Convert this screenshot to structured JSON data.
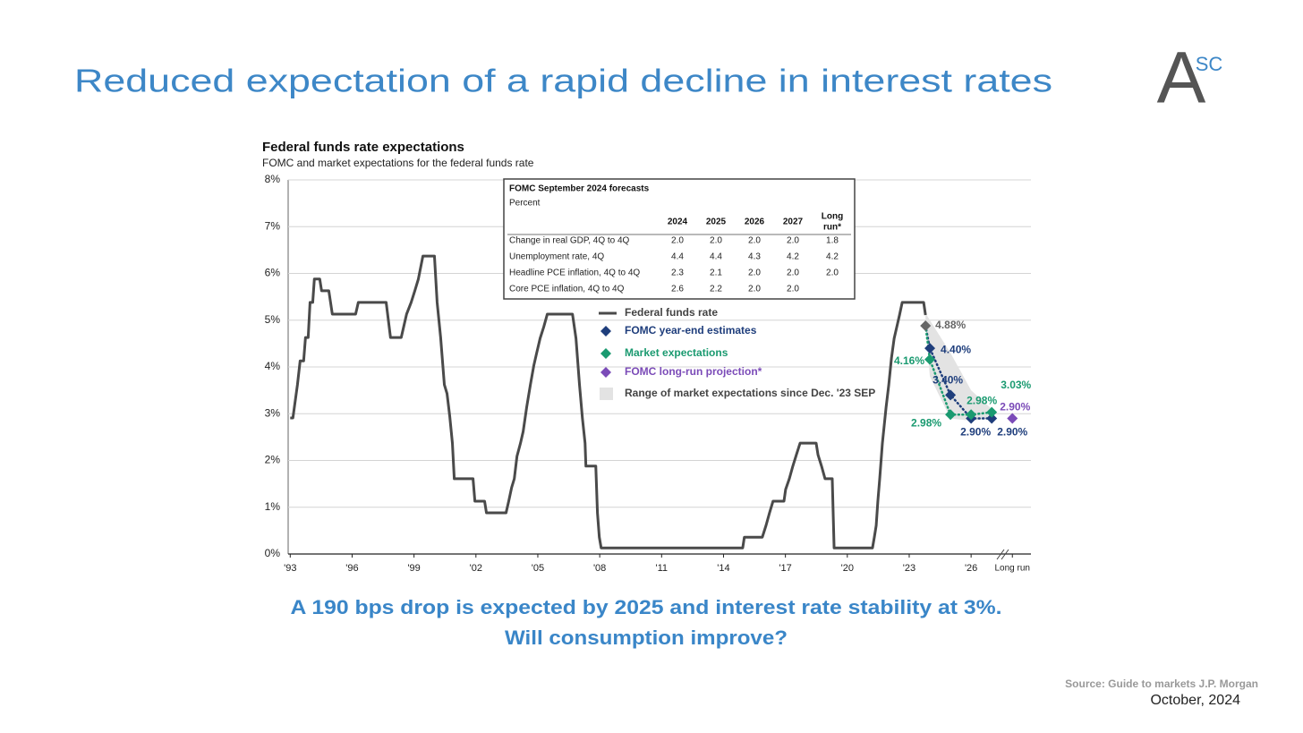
{
  "header": {
    "title": "Reduced expectation of a rapid decline in interest rates",
    "logo": "A",
    "logo_sup": "SC"
  },
  "chart_data": {
    "type": "line",
    "title": "Federal funds rate expectations",
    "subtitle": "FOMC and market expectations for the federal funds rate",
    "xlim": [
      1992.9,
      2028.9
    ],
    "ylim": [
      0,
      8
    ],
    "yticks": [
      {
        "value": 0,
        "label": "0%"
      },
      {
        "value": 1,
        "label": "1%"
      },
      {
        "value": 2,
        "label": "2%"
      },
      {
        "value": 3,
        "label": "3%"
      },
      {
        "value": 4,
        "label": "4%"
      },
      {
        "value": 5,
        "label": "5%"
      },
      {
        "value": 6,
        "label": "6%"
      },
      {
        "value": 7,
        "label": "7%"
      },
      {
        "value": 8,
        "label": "8%"
      }
    ],
    "xticks": [
      {
        "value": 1993,
        "label": "'93"
      },
      {
        "value": 1996,
        "label": "'96"
      },
      {
        "value": 1999,
        "label": "'99"
      },
      {
        "value": 2002,
        "label": "'02"
      },
      {
        "value": 2005,
        "label": "'05"
      },
      {
        "value": 2008,
        "label": "'08"
      },
      {
        "value": 2011,
        "label": "'11"
      },
      {
        "value": 2014,
        "label": "'14"
      },
      {
        "value": 2017,
        "label": "'17"
      },
      {
        "value": 2020,
        "label": "'20"
      },
      {
        "value": 2023,
        "label": "'23"
      },
      {
        "value": 2026,
        "label": "'26"
      },
      {
        "value": 2028,
        "label": "Long run"
      }
    ],
    "grid": true,
    "series": [
      {
        "name": "Federal funds rate",
        "color": "#4a4a4a",
        "style": "line",
        "x": [
          1993.0,
          1993.13,
          1993.35,
          1993.48,
          1993.65,
          1993.74,
          1993.87,
          1993.96,
          1994.09,
          1994.17,
          1994.43,
          1994.52,
          1994.87,
          1995.04,
          1996.17,
          1996.3,
          1997.65,
          1997.86,
          1998.38,
          1998.51,
          1998.64,
          1998.86,
          1999.04,
          1999.21,
          1999.43,
          1999.99,
          2000.12,
          2000.29,
          2000.47,
          2000.6,
          2000.73,
          2000.86,
          2000.95,
          2001.12,
          2001.86,
          2001.95,
          2002.42,
          2002.51,
          2003.46,
          2003.59,
          2003.73,
          2003.86,
          2003.99,
          2004.16,
          2004.29,
          2004.46,
          2004.64,
          2004.81,
          2004.94,
          2005.11,
          2005.29,
          2005.46,
          2006.68,
          2006.85,
          2007.02,
          2007.16,
          2007.29,
          2007.33,
          2007.81,
          2007.89,
          2007.98,
          2008.07,
          2014.93,
          2015.01,
          2015.88,
          2016.06,
          2016.23,
          2016.4,
          2016.93,
          2017.01,
          2017.19,
          2017.36,
          2017.53,
          2017.71,
          2018.49,
          2018.58,
          2018.75,
          2018.92,
          2019.27,
          2019.36,
          2021.22,
          2021.31,
          2021.4,
          2021.48,
          2021.57,
          2021.7,
          2021.88,
          2022.01,
          2022.14,
          2022.27,
          2022.4,
          2022.53,
          2022.66,
          2023.7,
          2023.79
        ],
        "values": [
          2.91,
          2.91,
          3.62,
          4.13,
          4.13,
          4.63,
          4.63,
          5.38,
          5.38,
          5.88,
          5.88,
          5.63,
          5.63,
          5.13,
          5.13,
          5.38,
          5.38,
          4.63,
          4.63,
          4.88,
          5.13,
          5.38,
          5.63,
          5.88,
          6.37,
          6.37,
          5.38,
          4.63,
          3.62,
          3.43,
          2.95,
          2.37,
          1.61,
          1.61,
          1.61,
          1.13,
          1.13,
          0.88,
          0.88,
          1.13,
          1.42,
          1.61,
          2.09,
          2.37,
          2.62,
          3.14,
          3.62,
          4.04,
          4.29,
          4.61,
          4.86,
          5.13,
          5.13,
          4.61,
          3.62,
          2.91,
          2.37,
          1.88,
          1.88,
          0.88,
          0.36,
          0.13,
          0.13,
          0.36,
          0.36,
          0.61,
          0.88,
          1.13,
          1.13,
          1.38,
          1.61,
          1.88,
          2.12,
          2.37,
          2.37,
          2.12,
          1.88,
          1.61,
          1.61,
          0.13,
          0.13,
          0.36,
          0.61,
          1.13,
          1.61,
          2.37,
          3.14,
          3.62,
          4.19,
          4.61,
          4.86,
          5.11,
          5.38,
          5.38,
          5.11
        ]
      },
      {
        "name": "FOMC year-end estimates",
        "color": "#1f3e7c",
        "style": "dotted",
        "x": [
          2024,
          2025,
          2026,
          2027
        ],
        "values": [
          4.4,
          3.4,
          2.9,
          2.9
        ],
        "value_labels": [
          "4.40%",
          "3.40%",
          "2.90%",
          "2.90%"
        ]
      },
      {
        "name": "Market expectations",
        "color": "#1a9a70",
        "style": "dotted",
        "x": [
          2024,
          2025,
          2026,
          2027
        ],
        "values": [
          4.16,
          2.98,
          2.98,
          3.03
        ],
        "value_labels": [
          "4.16%",
          "2.98%",
          "2.98%",
          "3.03%"
        ]
      },
      {
        "name": "FOMC long-run projection*",
        "color": "#7b4bb8",
        "style": "points",
        "x": [
          2028
        ],
        "values": [
          2.9
        ],
        "value_labels": [
          "2.90%"
        ]
      },
      {
        "name": "Range of market expectations since Dec. '23 SEP",
        "color": "#e3e3e3",
        "style": "band",
        "x": [
          2023.79,
          2024,
          2025,
          2026,
          2027
        ],
        "upper": [
          5.15,
          5.0,
          4.3,
          3.5,
          3.1
        ],
        "lower": [
          4.88,
          3.8,
          2.9,
          2.85,
          2.9
        ]
      }
    ],
    "annotations": [
      {
        "x": 2023.79,
        "y": 4.88,
        "label": "4.88%",
        "color": "#666666"
      }
    ],
    "table": {
      "title": "FOMC September 2024 forecasts",
      "subtitle": "Percent",
      "columns": [
        "2024",
        "2025",
        "2026",
        "2027",
        "Long",
        "run*"
      ],
      "rows": [
        [
          "Change in real GDP, 4Q to 4Q",
          "2.0",
          "2.0",
          "2.0",
          "2.0",
          "1.8"
        ],
        [
          "Unemployment rate, 4Q",
          "4.4",
          "4.4",
          "4.3",
          "4.2",
          "4.2"
        ],
        [
          "Headline PCE inflation, 4Q to 4Q",
          "2.3",
          "2.1",
          "2.0",
          "2.0",
          "2.0"
        ],
        [
          "Core PCE inflation, 4Q to 4Q",
          "2.6",
          "2.2",
          "2.0",
          "2.0",
          null
        ]
      ]
    }
  },
  "caption": [
    "A 190 bps drop is expected by 2025 and interest rate stability at 3%.",
    "Will consumption improve?"
  ],
  "footer": {
    "source": "Source: Guide to markets J.P. Morgan",
    "date": "October, 2024"
  }
}
